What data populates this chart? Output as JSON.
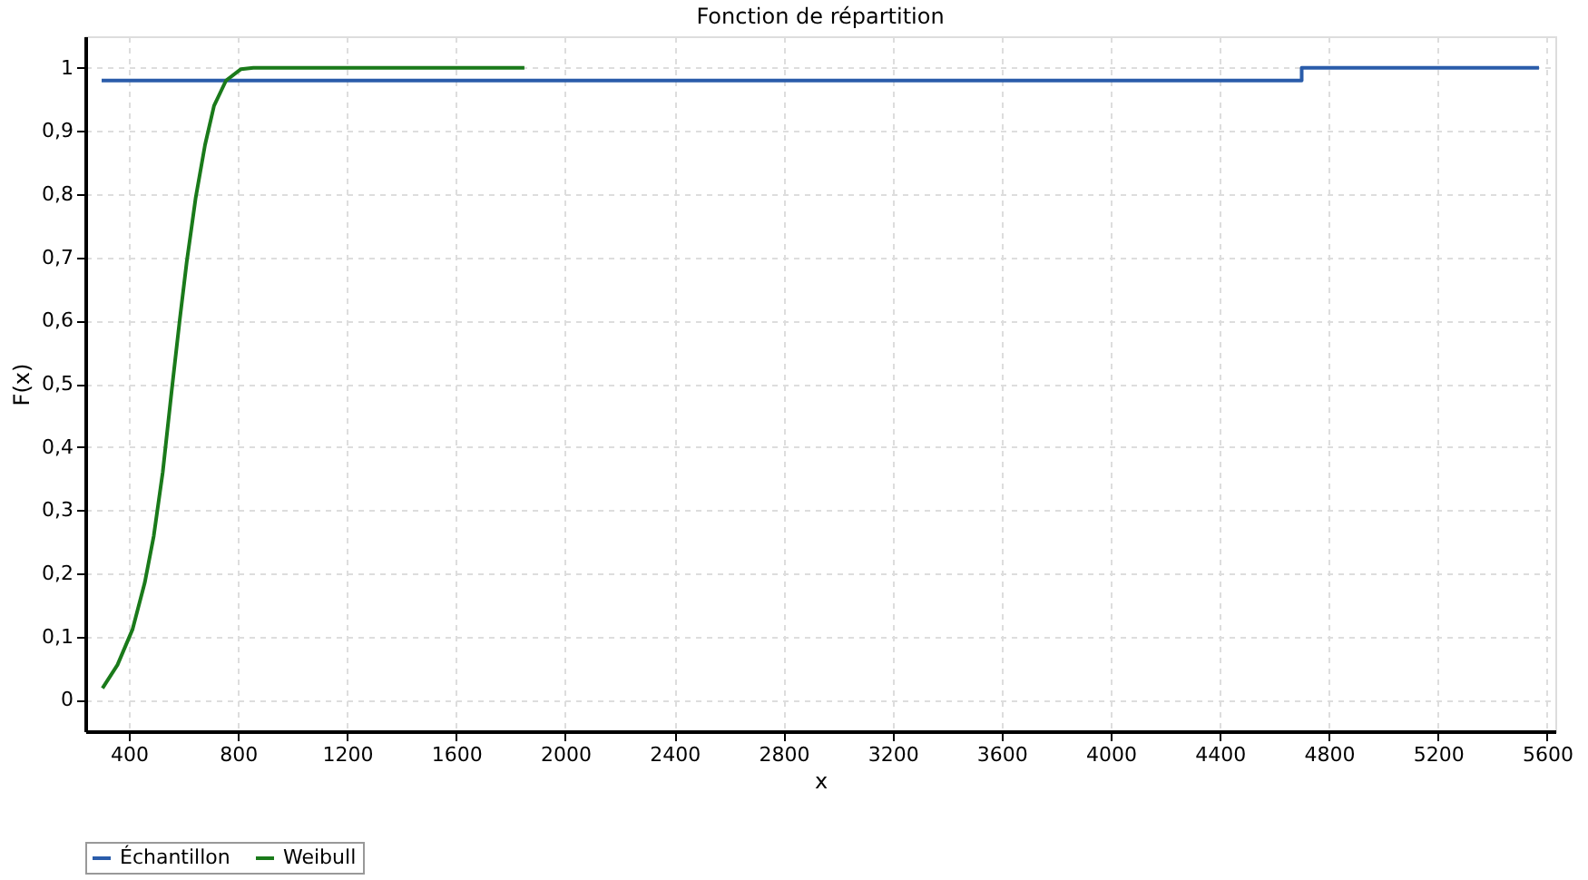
{
  "chart_data": {
    "type": "line",
    "title": "Fonction de répartition",
    "xlabel": "x",
    "ylabel": "F(x)",
    "series": [
      {
        "name": "Échantillon",
        "type": "step",
        "color": "#2a5caa",
        "x": [
          300,
          4700,
          5570
        ],
        "values": [
          0.98,
          1,
          1
        ]
      },
      {
        "name": "Weibull",
        "color": "#1a7a1a",
        "x": [
          303,
          358,
          413,
          458,
          491,
          524,
          557,
          586,
          612,
          645,
          679,
          712,
          756,
          811,
          856,
          1850
        ],
        "values": [
          0.018,
          0.055,
          0.111,
          0.185,
          0.259,
          0.36,
          0.49,
          0.6,
          0.693,
          0.795,
          0.878,
          0.94,
          0.98,
          0.998,
          1,
          1
        ]
      }
    ],
    "xlim": [
      240,
      5630
    ],
    "ylim": [
      -0.05,
      1.05
    ],
    "xticks": [
      400,
      800,
      1200,
      1600,
      2000,
      2400,
      2800,
      3200,
      3600,
      4000,
      4400,
      4800,
      5200,
      5600
    ],
    "yticks": [
      0,
      {
        "value": 0.1,
        "label": "0,1"
      },
      {
        "value": 0.2,
        "label": "0,2"
      },
      {
        "value": 0.3,
        "label": "0,3"
      },
      {
        "value": 0.4,
        "label": "0,4"
      },
      {
        "value": 0.5,
        "label": "0,5"
      },
      {
        "value": 0.6,
        "label": "0,6"
      },
      {
        "value": 0.7,
        "label": "0,7"
      },
      {
        "value": 0.8,
        "label": "0,8"
      },
      {
        "value": 0.9,
        "label": "0,9"
      },
      1
    ],
    "grid": true,
    "legend": "bottom"
  }
}
